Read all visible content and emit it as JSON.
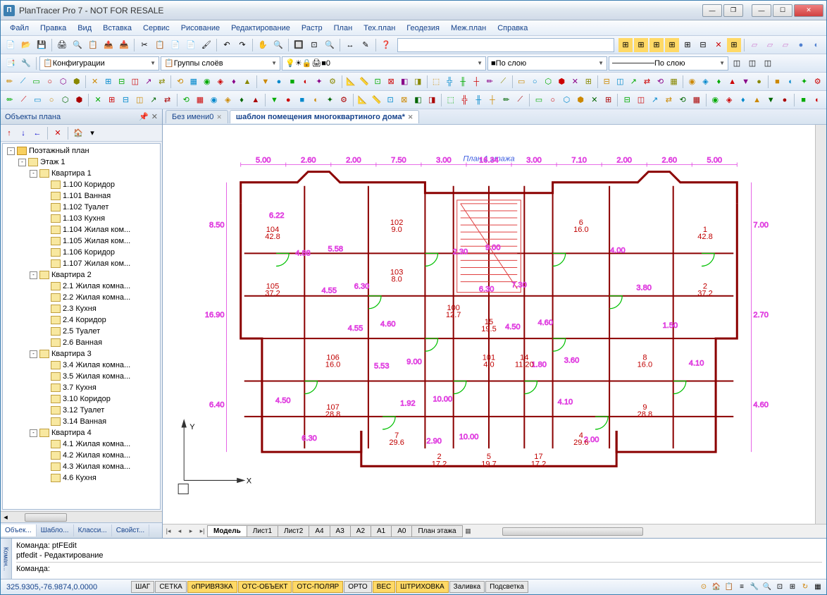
{
  "window": {
    "title": "PlanTracer Pro 7 - NOT FOR RESALE",
    "icon_letter": "П"
  },
  "menu": [
    "Файл",
    "Правка",
    "Вид",
    "Вставка",
    "Сервис",
    "Рисование",
    "Редактирование",
    "Растр",
    "План",
    "Тех.план",
    "Геодезия",
    "Меж.план",
    "Справка"
  ],
  "toolbar_row2": {
    "combo1": "Конфигурации",
    "combo2": "Группы слоёв",
    "combo3": "0",
    "combo4": "По слою",
    "combo5": "По слою"
  },
  "left_panel": {
    "title": "Объекты плана",
    "tabs": [
      "Объек...",
      "Шабло...",
      "Класси...",
      "Свойст..."
    ]
  },
  "tree": [
    {
      "d": 0,
      "t": "-",
      "i": "folder",
      "l": "Поэтажный план"
    },
    {
      "d": 1,
      "t": "-",
      "i": "doc",
      "l": "Этаж 1"
    },
    {
      "d": 2,
      "t": "-",
      "i": "doc",
      "l": "Квартира 1"
    },
    {
      "d": 3,
      "t": "",
      "i": "doc",
      "l": "1.100 Коридор"
    },
    {
      "d": 3,
      "t": "",
      "i": "doc",
      "l": "1.101 Ванная"
    },
    {
      "d": 3,
      "t": "",
      "i": "doc",
      "l": "1.102 Туалет"
    },
    {
      "d": 3,
      "t": "",
      "i": "doc",
      "l": "1.103 Кухня"
    },
    {
      "d": 3,
      "t": "",
      "i": "doc",
      "l": "1.104 Жилая ком..."
    },
    {
      "d": 3,
      "t": "",
      "i": "doc",
      "l": "1.105 Жилая ком..."
    },
    {
      "d": 3,
      "t": "",
      "i": "doc",
      "l": "1.106 Коридор"
    },
    {
      "d": 3,
      "t": "",
      "i": "doc",
      "l": "1.107 Жилая ком..."
    },
    {
      "d": 2,
      "t": "-",
      "i": "doc",
      "l": "Квартира 2"
    },
    {
      "d": 3,
      "t": "",
      "i": "doc",
      "l": "2.1 Жилая комна..."
    },
    {
      "d": 3,
      "t": "",
      "i": "doc",
      "l": "2.2 Жилая комна..."
    },
    {
      "d": 3,
      "t": "",
      "i": "doc",
      "l": "2.3 Кухня"
    },
    {
      "d": 3,
      "t": "",
      "i": "doc",
      "l": "2.4 Коридор"
    },
    {
      "d": 3,
      "t": "",
      "i": "doc",
      "l": "2.5 Туалет"
    },
    {
      "d": 3,
      "t": "",
      "i": "doc",
      "l": "2.6 Ванная"
    },
    {
      "d": 2,
      "t": "-",
      "i": "doc",
      "l": "Квартира 3"
    },
    {
      "d": 3,
      "t": "",
      "i": "doc",
      "l": "3.4 Жилая комна..."
    },
    {
      "d": 3,
      "t": "",
      "i": "doc",
      "l": "3.5 Жилая комна..."
    },
    {
      "d": 3,
      "t": "",
      "i": "doc",
      "l": "3.7 Кухня"
    },
    {
      "d": 3,
      "t": "",
      "i": "doc",
      "l": "3.10 Коридор"
    },
    {
      "d": 3,
      "t": "",
      "i": "doc",
      "l": "3.12 Туалет"
    },
    {
      "d": 3,
      "t": "",
      "i": "doc",
      "l": "3.14 Ванная"
    },
    {
      "d": 2,
      "t": "-",
      "i": "doc",
      "l": "Квартира 4"
    },
    {
      "d": 3,
      "t": "",
      "i": "doc",
      "l": "4.1 Жилая комна..."
    },
    {
      "d": 3,
      "t": "",
      "i": "doc",
      "l": "4.2 Жилая комна..."
    },
    {
      "d": 3,
      "t": "",
      "i": "doc",
      "l": "4.3 Жилая комна..."
    },
    {
      "d": 3,
      "t": "",
      "i": "doc",
      "l": "4.6 Кухня"
    }
  ],
  "doc_tabs": [
    {
      "label": "Без имени0",
      "active": false
    },
    {
      "label": "шаблон помещения многоквартиного дома*",
      "active": true
    }
  ],
  "model_tabs": [
    "Модель",
    "Лист1",
    "Лист2",
    "A4",
    "A3",
    "A2",
    "A1",
    "A0",
    "План этажа"
  ],
  "floorplan": {
    "title": "План 1 этажа",
    "title_color": "#4060e0",
    "wall_color": "#8b0000",
    "dim_color": "#e040e0",
    "door_color": "#00c000",
    "stair_color": "#e04040",
    "room_label_color": "#c00000",
    "outer_dims_top": [
      "5.00",
      "2.60",
      "2.00",
      "7.50",
      "3.00",
      "16.34",
      "3.00",
      "7.10",
      "2.00",
      "2.60",
      "5.00"
    ],
    "outer_dims_left": [
      "8.50",
      "16.90",
      "6.40"
    ],
    "outer_dims_right": [
      "7.00",
      "2.70",
      "4.60"
    ],
    "rooms": [
      {
        "id": "104",
        "area": "42.8"
      },
      {
        "id": "105",
        "area": "37.2"
      },
      {
        "id": "102",
        "area": "9.0"
      },
      {
        "id": "103",
        "area": "8.0"
      },
      {
        "id": "100",
        "area": "12.7"
      },
      {
        "id": "101",
        "area": "4.0"
      },
      {
        "id": "1",
        "area": "42.8"
      },
      {
        "id": "2",
        "area": "37.2"
      },
      {
        "id": "106",
        "area": "16.0"
      },
      {
        "id": "107",
        "area": "28.8"
      },
      {
        "id": "15",
        "area": "19.5"
      },
      {
        "id": "14",
        "area": "11.20"
      },
      {
        "id": "7",
        "area": "29.6"
      },
      {
        "id": "5",
        "area": "19.7"
      },
      {
        "id": "4",
        "area": "29.6"
      },
      {
        "id": "8",
        "area": "16.0"
      },
      {
        "id": "9",
        "area": "28.8"
      },
      {
        "id": "2",
        "area": "17.2"
      },
      {
        "id": "17",
        "area": "17.2"
      },
      {
        "id": "6",
        "area": "16.0"
      }
    ],
    "inner_dims": [
      "6.22",
      "4.88",
      "4.55",
      "4.55",
      "5.53",
      "1.92",
      "2.90",
      "2.30",
      "6.30",
      "4.50",
      "1.80",
      "4.10",
      "2.00",
      "4.00",
      "3.80",
      "1.50",
      "4.10",
      "4.50",
      "6.30",
      "5.58",
      "6.30",
      "4.60",
      "9.00",
      "10.00",
      "10.00",
      "9.00",
      "7.30",
      "4.60",
      "3.60"
    ]
  },
  "command": {
    "label": "Коман...",
    "line1": "Команда: ptFEdit",
    "line2": "ptfedit - Редактирование",
    "prompt": "Команда:"
  },
  "status": {
    "coords": "325.9305,-76.9874,0.0000",
    "buttons": [
      {
        "l": "ШАГ",
        "on": false
      },
      {
        "l": "СЕТКА",
        "on": false
      },
      {
        "l": "оПРИВЯЗКА",
        "on": true
      },
      {
        "l": "ОТС-ОБЪЕКТ",
        "on": true
      },
      {
        "l": "ОТС-ПОЛЯР",
        "on": true
      },
      {
        "l": "ОРТО",
        "on": false
      },
      {
        "l": "ВЕС",
        "on": true
      },
      {
        "l": "ШТРИХОВКА",
        "on": true
      },
      {
        "l": "Заливка",
        "on": false
      },
      {
        "l": "Подсветка",
        "on": false
      }
    ]
  }
}
